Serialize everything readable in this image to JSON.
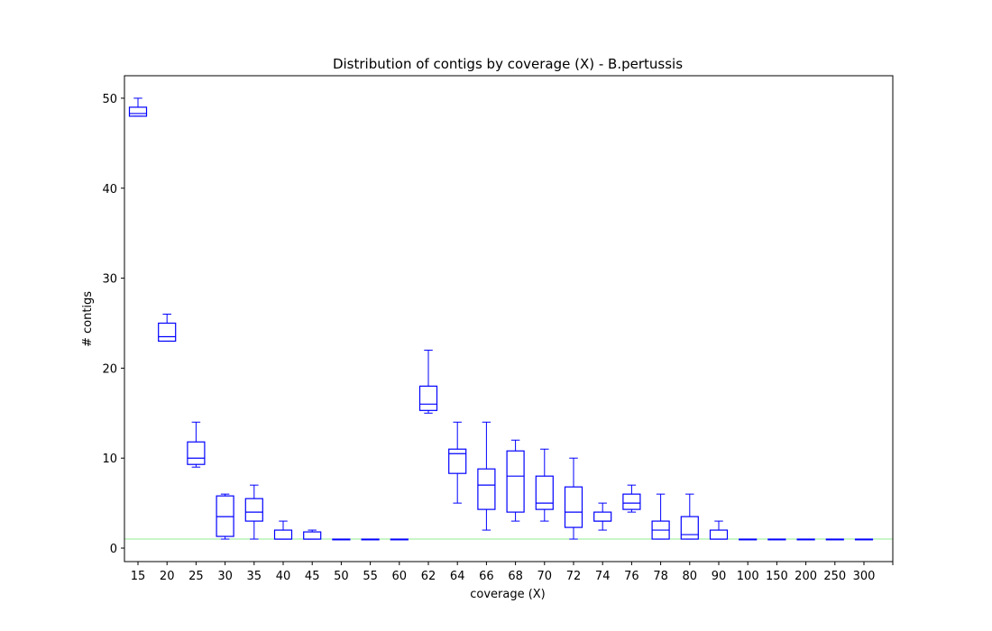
{
  "chart_data": {
    "type": "box",
    "title": "Distribution of contigs by coverage (X) - B.pertussis",
    "xlabel": "coverage (X)",
    "ylabel": "# contigs",
    "ylim": [
      -1.5,
      52.5
    ],
    "yticks": [
      0,
      10,
      20,
      30,
      40,
      50
    ],
    "grid": false,
    "colors": {
      "box": "#0000ff",
      "reference_line": "#90ee90",
      "outlier": "#a0a0a0"
    },
    "reference_line_y": 1,
    "categories": [
      "15",
      "20",
      "25",
      "30",
      "35",
      "40",
      "45",
      "50",
      "55",
      "60",
      "62",
      "64",
      "66",
      "68",
      "70",
      "72",
      "74",
      "76",
      "78",
      "80",
      "90",
      "100",
      "150",
      "200",
      "250",
      "300"
    ],
    "boxes": [
      {
        "whislo": 48,
        "q1": 48,
        "med": 48.3,
        "q3": 49,
        "whishi": 50
      },
      {
        "whislo": 23,
        "q1": 23,
        "med": 23.5,
        "q3": 25,
        "whishi": 26
      },
      {
        "whislo": 9,
        "q1": 9.3,
        "med": 10,
        "q3": 11.8,
        "whishi": 14
      },
      {
        "whislo": 1,
        "q1": 1.3,
        "med": 3.5,
        "q3": 5.8,
        "whishi": 6
      },
      {
        "whislo": 1,
        "q1": 3,
        "med": 4,
        "q3": 5.5,
        "whishi": 7
      },
      {
        "whislo": 1,
        "q1": 1,
        "med": 1,
        "q3": 2,
        "whishi": 3
      },
      {
        "whislo": 1,
        "q1": 1,
        "med": 1,
        "q3": 1.8,
        "whishi": 2
      },
      {
        "whislo": 1,
        "q1": 1,
        "med": 1,
        "q3": 1,
        "whishi": 1
      },
      {
        "whislo": 1,
        "q1": 1,
        "med": 1,
        "q3": 1,
        "whishi": 1
      },
      {
        "whislo": 1,
        "q1": 1,
        "med": 1,
        "q3": 1,
        "whishi": 1
      },
      {
        "whislo": 15,
        "q1": 15.3,
        "med": 16,
        "q3": 18,
        "whishi": 22
      },
      {
        "whislo": 5,
        "q1": 8.3,
        "med": 10.5,
        "q3": 11,
        "whishi": 14
      },
      {
        "whislo": 2,
        "q1": 4.3,
        "med": 7,
        "q3": 8.8,
        "whishi": 14
      },
      {
        "whislo": 3,
        "q1": 4,
        "med": 8,
        "q3": 10.8,
        "whishi": 12
      },
      {
        "whislo": 3,
        "q1": 4.3,
        "med": 5,
        "q3": 8,
        "whishi": 11
      },
      {
        "whislo": 1,
        "q1": 2.3,
        "med": 4,
        "q3": 6.8,
        "whishi": 10
      },
      {
        "whislo": 2,
        "q1": 3,
        "med": 3,
        "q3": 4,
        "whishi": 5
      },
      {
        "whislo": 4,
        "q1": 4.3,
        "med": 5,
        "q3": 6,
        "whishi": 7
      },
      {
        "whislo": 1,
        "q1": 1,
        "med": 2,
        "q3": 3,
        "whishi": 6
      },
      {
        "whislo": 1,
        "q1": 1,
        "med": 1.5,
        "q3": 3.5,
        "whishi": 6
      },
      {
        "whislo": 1,
        "q1": 1,
        "med": 1,
        "q3": 2,
        "whishi": 3
      },
      {
        "whislo": 1,
        "q1": 1,
        "med": 1,
        "q3": 1,
        "whishi": 1
      },
      {
        "whislo": 1,
        "q1": 1,
        "med": 1,
        "q3": 1,
        "whishi": 1
      },
      {
        "whislo": 1,
        "q1": 1,
        "med": 1,
        "q3": 1,
        "whishi": 1
      },
      {
        "whislo": 1,
        "q1": 1,
        "med": 1,
        "q3": 1,
        "whishi": 1
      },
      {
        "whislo": 1,
        "q1": 1,
        "med": 1,
        "q3": 1,
        "whishi": 1
      }
    ]
  }
}
